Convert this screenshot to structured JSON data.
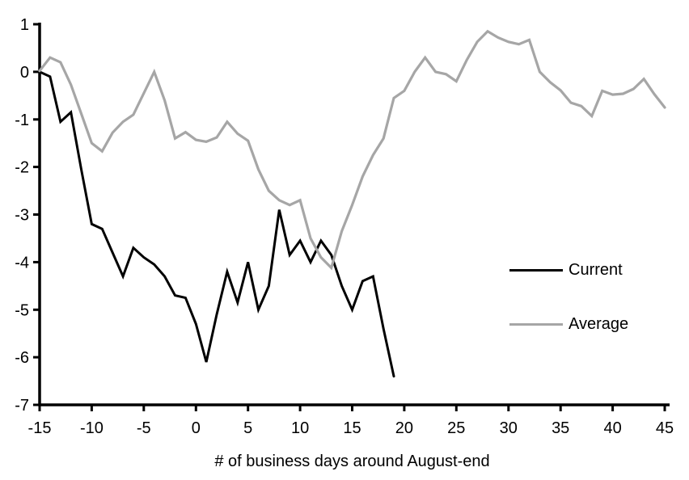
{
  "chart_data": {
    "type": "line",
    "title": "",
    "xlabel": "# of business days around August-end",
    "ylabel": "",
    "xlim": [
      -15,
      45
    ],
    "ylim": [
      -7,
      1
    ],
    "xticks": [
      -15,
      -10,
      -5,
      0,
      5,
      10,
      15,
      20,
      25,
      30,
      35,
      40,
      45
    ],
    "yticks": [
      1,
      0,
      -1,
      -2,
      -3,
      -4,
      -5,
      -6,
      -7
    ],
    "grid": false,
    "legend_position": "right-middle",
    "axis_color": "#000000",
    "background_color": "#ffffff",
    "x": [
      -15,
      -14,
      -13,
      -12,
      -11,
      -10,
      -9,
      -8,
      -7,
      -6,
      -5,
      -4,
      -3,
      -2,
      -1,
      0,
      1,
      2,
      3,
      4,
      5,
      6,
      7,
      8,
      9,
      10,
      11,
      12,
      13,
      14,
      15,
      16,
      17,
      18,
      19,
      20,
      21,
      22,
      23,
      24,
      25,
      26,
      27,
      28,
      29,
      30,
      31,
      32,
      33,
      34,
      35,
      36,
      37,
      38,
      39,
      40,
      41,
      42,
      43,
      44,
      45
    ],
    "series": [
      {
        "name": "Current",
        "color": "#000000",
        "width": 3,
        "values": [
          0,
          -0.1,
          -1.05,
          -0.85,
          -2.05,
          -3.2,
          -3.3,
          -3.8,
          -4.3,
          -3.7,
          -3.9,
          -4.05,
          -4.3,
          -4.7,
          -4.75,
          -5.3,
          -6.1,
          -5.1,
          -4.2,
          -4.85,
          -4.0,
          -5.0,
          -4.5,
          -2.9,
          -3.85,
          -3.55,
          -4.0,
          -3.55,
          -3.85,
          -4.5,
          -5.0,
          -4.4,
          -4.3,
          -5.4,
          -6.4,
          null,
          null,
          null,
          null,
          null,
          null,
          null,
          null,
          null,
          null,
          null,
          null,
          null,
          null,
          null,
          null,
          null,
          null,
          null,
          null,
          null,
          null,
          null,
          null,
          null,
          null
        ]
      },
      {
        "name": "Average",
        "color": "#a6a6a6",
        "width": 3.2,
        "values": [
          0.02,
          0.3,
          0.2,
          -0.27,
          -0.88,
          -1.5,
          -1.67,
          -1.28,
          -1.05,
          -0.9,
          -0.45,
          0.0,
          -0.6,
          -1.4,
          -1.27,
          -1.43,
          -1.47,
          -1.38,
          -1.05,
          -1.3,
          -1.45,
          -2.05,
          -2.5,
          -2.7,
          -2.8,
          -2.7,
          -3.5,
          -3.9,
          -4.12,
          -3.35,
          -2.8,
          -2.2,
          -1.75,
          -1.4,
          -0.55,
          -0.4,
          0.0,
          0.3,
          0.0,
          -0.05,
          -0.2,
          0.25,
          0.63,
          0.85,
          0.72,
          0.63,
          0.58,
          0.67,
          0.0,
          -0.22,
          -0.39,
          -0.65,
          -0.72,
          -0.93,
          -0.4,
          -0.48,
          -0.46,
          -0.36,
          -0.15,
          -0.47,
          -0.75
        ]
      }
    ]
  }
}
